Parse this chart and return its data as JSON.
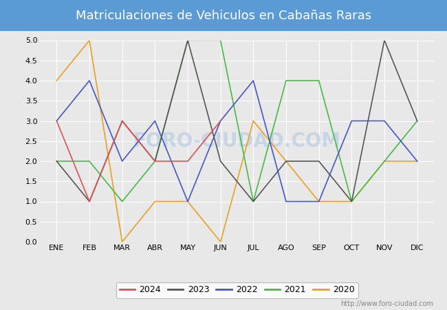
{
  "title": "Matriculaciones de Vehiculos en Cabañas Raras",
  "months": [
    "ENE",
    "FEB",
    "MAR",
    "ABR",
    "MAY",
    "JUN",
    "JUL",
    "AGO",
    "SEP",
    "OCT",
    "NOV",
    "DIC"
  ],
  "series": {
    "2024": {
      "values": [
        3,
        1,
        3,
        2,
        2,
        3,
        null,
        null,
        null,
        null,
        null,
        null
      ],
      "color": "#e05050",
      "label": "2024"
    },
    "2023": {
      "values": [
        2,
        1,
        3,
        2,
        5,
        2,
        1,
        2,
        2,
        1,
        5,
        3
      ],
      "color": "#555555",
      "label": "2023"
    },
    "2022": {
      "values": [
        3,
        4,
        2,
        3,
        1,
        3,
        4,
        1,
        1,
        3,
        3,
        2
      ],
      "color": "#4455cc",
      "label": "2022"
    },
    "2021": {
      "values": [
        2,
        2,
        1,
        2,
        5,
        5,
        1,
        4,
        4,
        1,
        2,
        3
      ],
      "color": "#44bb44",
      "label": "2021"
    },
    "2020": {
      "values": [
        4,
        5,
        0,
        1,
        1,
        0,
        3,
        2,
        1,
        1,
        2,
        2
      ],
      "color": "#e8a020",
      "label": "2020"
    }
  },
  "ylim": [
    0.0,
    5.0
  ],
  "yticks": [
    0.0,
    0.5,
    1.0,
    1.5,
    2.0,
    2.5,
    3.0,
    3.5,
    4.0,
    4.5,
    5.0
  ],
  "plot_bgcolor": "#e8e8e8",
  "title_bgcolor": "#5b9bd5",
  "title_color": "white",
  "title_fontsize": 13,
  "watermark": "FORO-CIUDAD.COM",
  "watermark_color": "#b0c8e0",
  "watermark_alpha": 0.6,
  "url": "http://www.foro-ciudad.com",
  "url_fontsize": 7,
  "legend_order": [
    "2024",
    "2023",
    "2022",
    "2021",
    "2020"
  ],
  "tick_fontsize": 8,
  "grid_color": "white",
  "grid_linewidth": 0.8,
  "line_linewidth": 1.2
}
